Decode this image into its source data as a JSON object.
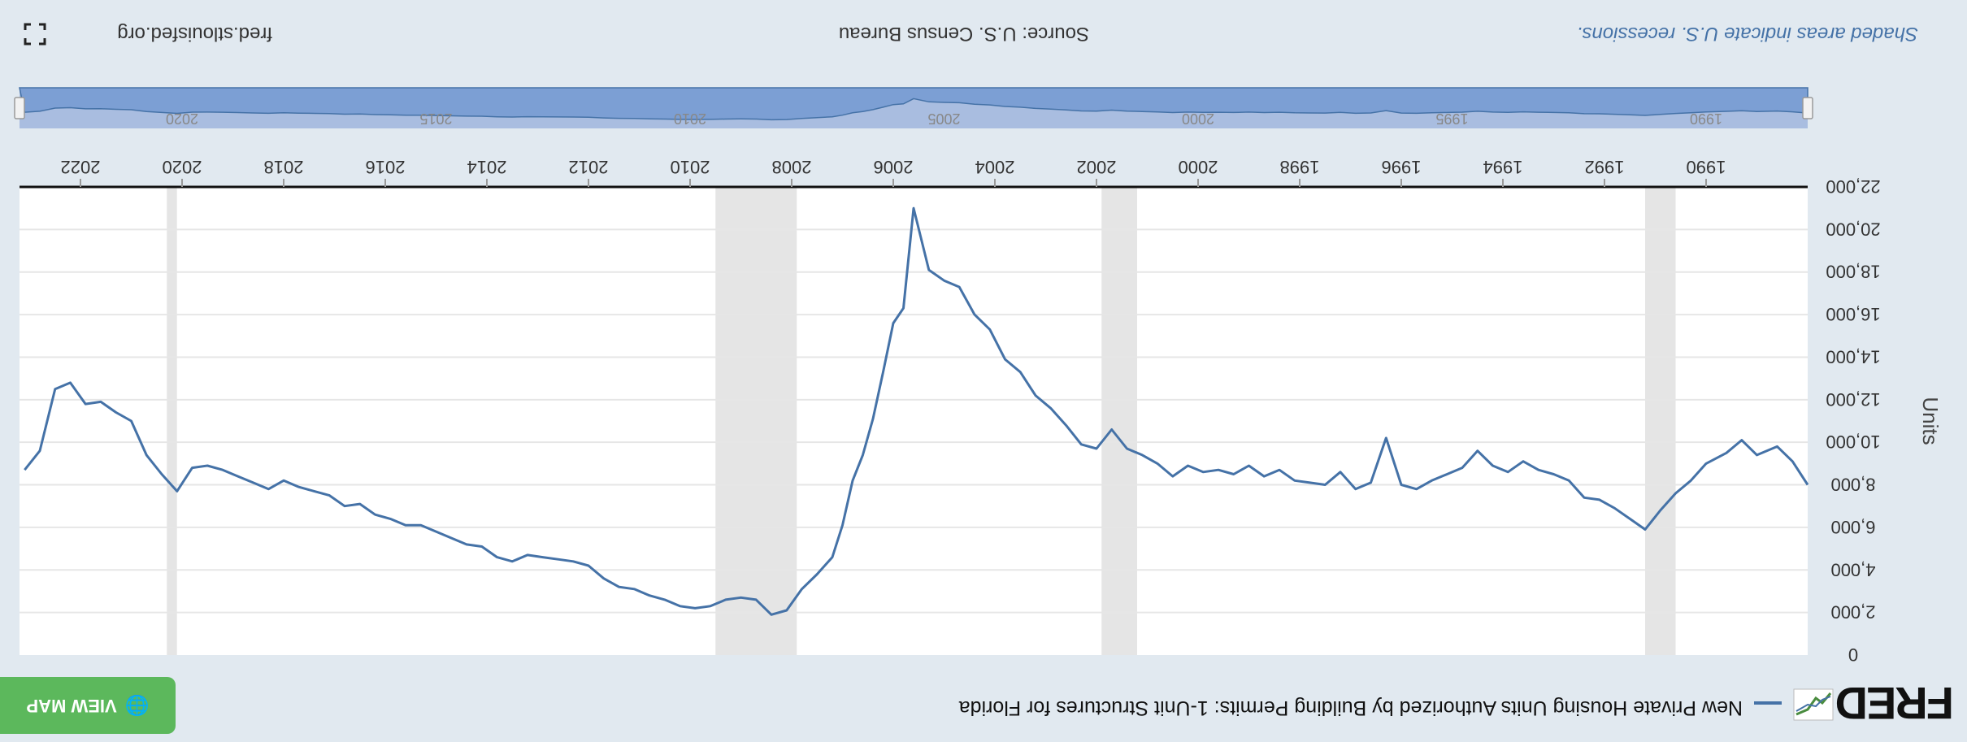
{
  "header": {
    "logo_text": "FRED",
    "series_title": "New Private Housing Units Authorized by Building Permits: 1-Unit Structures for Florida",
    "view_map_label": "VIEW MAP",
    "globe_icon": "globe-icon",
    "view_map_color": "#5cb85c"
  },
  "footer": {
    "shaded_note": "Shaded areas indicate U.S. recessions.",
    "source": "Source: U.S. Census Bureau",
    "link": "fred.stlouisfed.org",
    "fullscreen_icon": "fullscreen-icon"
  },
  "colors": {
    "line": "#4572a7",
    "recession": "#e5e5e5",
    "navigator_fill": "#a9bde0",
    "background": "#e1e9f0"
  },
  "chart_data": {
    "type": "line",
    "title": "New Private Housing Units Authorized by Building Permits: 1-Unit Structures for Florida",
    "ylabel": "Units",
    "xlabel": "",
    "ylim": [
      0,
      22000
    ],
    "yticks": [
      0,
      2000,
      4000,
      6000,
      8000,
      10000,
      12000,
      14000,
      16000,
      18000,
      20000,
      22000
    ],
    "ytick_labels": [
      "0",
      "2,000",
      "4,000",
      "6,000",
      "8,000",
      "10,000",
      "12,000",
      "14,000",
      "16,000",
      "18,000",
      "20,000",
      "22,000"
    ],
    "xlim": [
      1988.0,
      2023.2
    ],
    "xticks": [
      1990,
      1992,
      1994,
      1996,
      1998,
      2000,
      2002,
      2004,
      2006,
      2008,
      2010,
      2012,
      2014,
      2016,
      2018,
      2020,
      2022
    ],
    "xtick_labels": [
      "1990",
      "1992",
      "1994",
      "1996",
      "1998",
      "2000",
      "2002",
      "2004",
      "2006",
      "2008",
      "2010",
      "2012",
      "2014",
      "2016",
      "2018",
      "2020",
      "2022"
    ],
    "navigator_labels": [
      "1990",
      "1995",
      "2000",
      "2005",
      "2010",
      "2015",
      "2020"
    ],
    "recessions": [
      [
        1990.6,
        1991.2
      ],
      [
        2001.2,
        2001.9
      ],
      [
        2007.9,
        2009.5
      ],
      [
        2020.1,
        2020.3
      ]
    ],
    "grid": true,
    "series": [
      {
        "name": "New Private Housing Units Authorized by Building Permits: 1-Unit Structures for Florida",
        "x": [
          1988.0,
          1988.3,
          1988.6,
          1989.0,
          1989.3,
          1989.6,
          1990.0,
          1990.3,
          1990.6,
          1990.9,
          1991.2,
          1991.5,
          1991.8,
          1992.1,
          1992.4,
          1992.7,
          1993.0,
          1993.3,
          1993.6,
          1993.9,
          1994.2,
          1994.5,
          1994.8,
          1995.1,
          1995.4,
          1995.7,
          1996.0,
          1996.3,
          1996.6,
          1996.9,
          1997.2,
          1997.5,
          1997.8,
          1998.1,
          1998.4,
          1998.7,
          1999.0,
          1999.3,
          1999.6,
          1999.9,
          2000.2,
          2000.5,
          2000.8,
          2001.1,
          2001.4,
          2001.7,
          2002.0,
          2002.3,
          2002.6,
          2002.9,
          2003.2,
          2003.5,
          2003.8,
          2004.1,
          2004.4,
          2004.7,
          2005.0,
          2005.3,
          2005.6,
          2005.8,
          2006.0,
          2006.2,
          2006.4,
          2006.6,
          2006.8,
          2007.0,
          2007.2,
          2007.5,
          2007.8,
          2008.1,
          2008.4,
          2008.7,
          2009.0,
          2009.3,
          2009.6,
          2009.9,
          2010.2,
          2010.5,
          2010.8,
          2011.1,
          2011.4,
          2011.7,
          2012.0,
          2012.3,
          2012.6,
          2012.9,
          2013.2,
          2013.5,
          2013.8,
          2014.1,
          2014.4,
          2014.7,
          2015.0,
          2015.3,
          2015.6,
          2015.9,
          2016.2,
          2016.5,
          2016.8,
          2017.1,
          2017.4,
          2017.7,
          2018.0,
          2018.3,
          2018.6,
          2018.9,
          2019.2,
          2019.5,
          2019.8,
          2020.1,
          2020.4,
          2020.7,
          2021.0,
          2021.3,
          2021.6,
          2021.9,
          2022.2,
          2022.5,
          2022.8,
          2023.1
        ],
        "values": [
          8000,
          9100,
          9800,
          9400,
          10100,
          9500,
          9000,
          8200,
          7600,
          6800,
          5900,
          6400,
          6900,
          7300,
          7400,
          8200,
          8500,
          8700,
          9100,
          8600,
          8900,
          9600,
          8800,
          8500,
          8200,
          7800,
          8000,
          10200,
          8100,
          7800,
          8600,
          8000,
          8100,
          8200,
          8700,
          8400,
          8900,
          8500,
          8700,
          8600,
          8900,
          8400,
          9000,
          9400,
          9700,
          10600,
          9700,
          9900,
          10800,
          11600,
          12200,
          13300,
          13900,
          15300,
          16000,
          17300,
          17600,
          18100,
          21000,
          16300,
          15600,
          13300,
          11100,
          9400,
          8200,
          6100,
          4600,
          3800,
          3100,
          2100,
          1900,
          2600,
          2700,
          2600,
          2300,
          2200,
          2300,
          2600,
          2800,
          3100,
          3200,
          3600,
          4200,
          4400,
          4500,
          4600,
          4700,
          4400,
          4600,
          5100,
          5200,
          5500,
          5800,
          6100,
          6100,
          6400,
          6600,
          7100,
          7000,
          7500,
          7700,
          7900,
          8200,
          7800,
          8100,
          8400,
          8700,
          8900,
          8800,
          7700,
          8500,
          9400,
          11000,
          11400,
          11900,
          11800,
          12800,
          12500,
          9600,
          8700
        ]
      }
    ]
  }
}
